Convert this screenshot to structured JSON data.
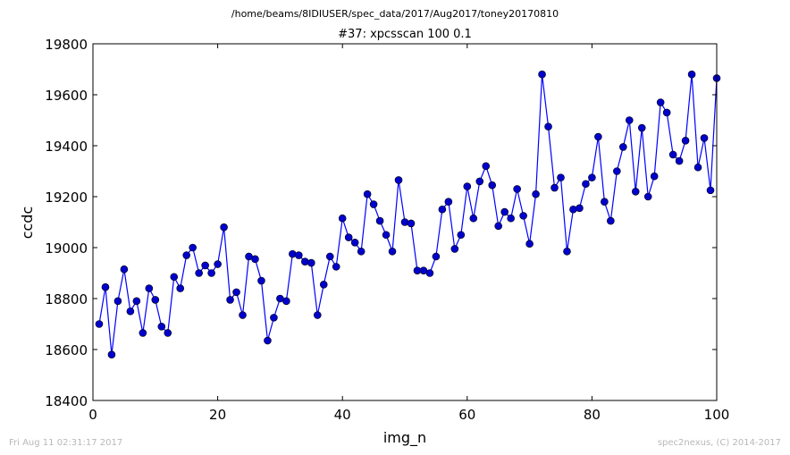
{
  "header": {
    "path": "/home/beams/8IDIUSER/spec_data/2017/Aug2017/toney20170810"
  },
  "footer": {
    "timestamp": "Fri Aug 11 02:31:17 2017",
    "credit": "spec2nexus, (C) 2014-2017"
  },
  "colors": {
    "series": "#0000ff",
    "marker": "#0000cd",
    "axes": "#000000"
  },
  "chart_data": {
    "type": "line",
    "title": "#37: xpcsscan 100 0.1",
    "xlabel": "img_n",
    "ylabel": "ccdc",
    "xlim": [
      0,
      100
    ],
    "ylim": [
      18400,
      19800
    ],
    "xticks": [
      0,
      20,
      40,
      60,
      80,
      100
    ],
    "yticks": [
      18400,
      18600,
      18800,
      19000,
      19200,
      19400,
      19600,
      19800
    ],
    "grid": false,
    "legend": "none",
    "marker": "circle",
    "x": [
      1,
      2,
      3,
      4,
      5,
      6,
      7,
      8,
      9,
      10,
      11,
      12,
      13,
      14,
      15,
      16,
      17,
      18,
      19,
      20,
      21,
      22,
      23,
      24,
      25,
      26,
      27,
      28,
      29,
      30,
      31,
      32,
      33,
      34,
      35,
      36,
      37,
      38,
      39,
      40,
      41,
      42,
      43,
      44,
      45,
      46,
      47,
      48,
      49,
      50,
      51,
      52,
      53,
      54,
      55,
      56,
      57,
      58,
      59,
      60,
      61,
      62,
      63,
      64,
      65,
      66,
      67,
      68,
      69,
      70,
      71,
      72,
      73,
      74,
      75,
      76,
      77,
      78,
      79,
      80,
      81,
      82,
      83,
      84,
      85,
      86,
      87,
      88,
      89,
      90,
      91,
      92,
      93,
      94,
      95,
      96,
      97,
      98,
      99,
      100
    ],
    "y": [
      18700,
      18845,
      18580,
      18790,
      18915,
      18750,
      18790,
      18665,
      18840,
      18795,
      18690,
      18665,
      18885,
      18840,
      18970,
      19000,
      18900,
      18930,
      18900,
      18935,
      19080,
      18795,
      18825,
      18735,
      18965,
      18955,
      18870,
      18635,
      18725,
      18800,
      18790,
      18975,
      18970,
      18945,
      18940,
      18735,
      18855,
      18965,
      18925,
      19115,
      19040,
      19020,
      18985,
      19210,
      19170,
      19105,
      19050,
      18985,
      19265,
      19100,
      19095,
      18910,
      18910,
      18900,
      18965,
      19150,
      19180,
      18995,
      19050,
      19240,
      19115,
      19260,
      19320,
      19245,
      19085,
      19140,
      19115,
      19230,
      19125,
      19015,
      19210,
      19680,
      19475,
      19235,
      19275,
      18985,
      19150,
      19155,
      19250,
      19275,
      19435,
      19180,
      19105,
      19300,
      19395,
      19500,
      19220,
      19470,
      19200,
      19280,
      19570,
      19530,
      19365,
      19340,
      19420,
      19680,
      19315,
      19430,
      19225,
      19665
    ]
  }
}
